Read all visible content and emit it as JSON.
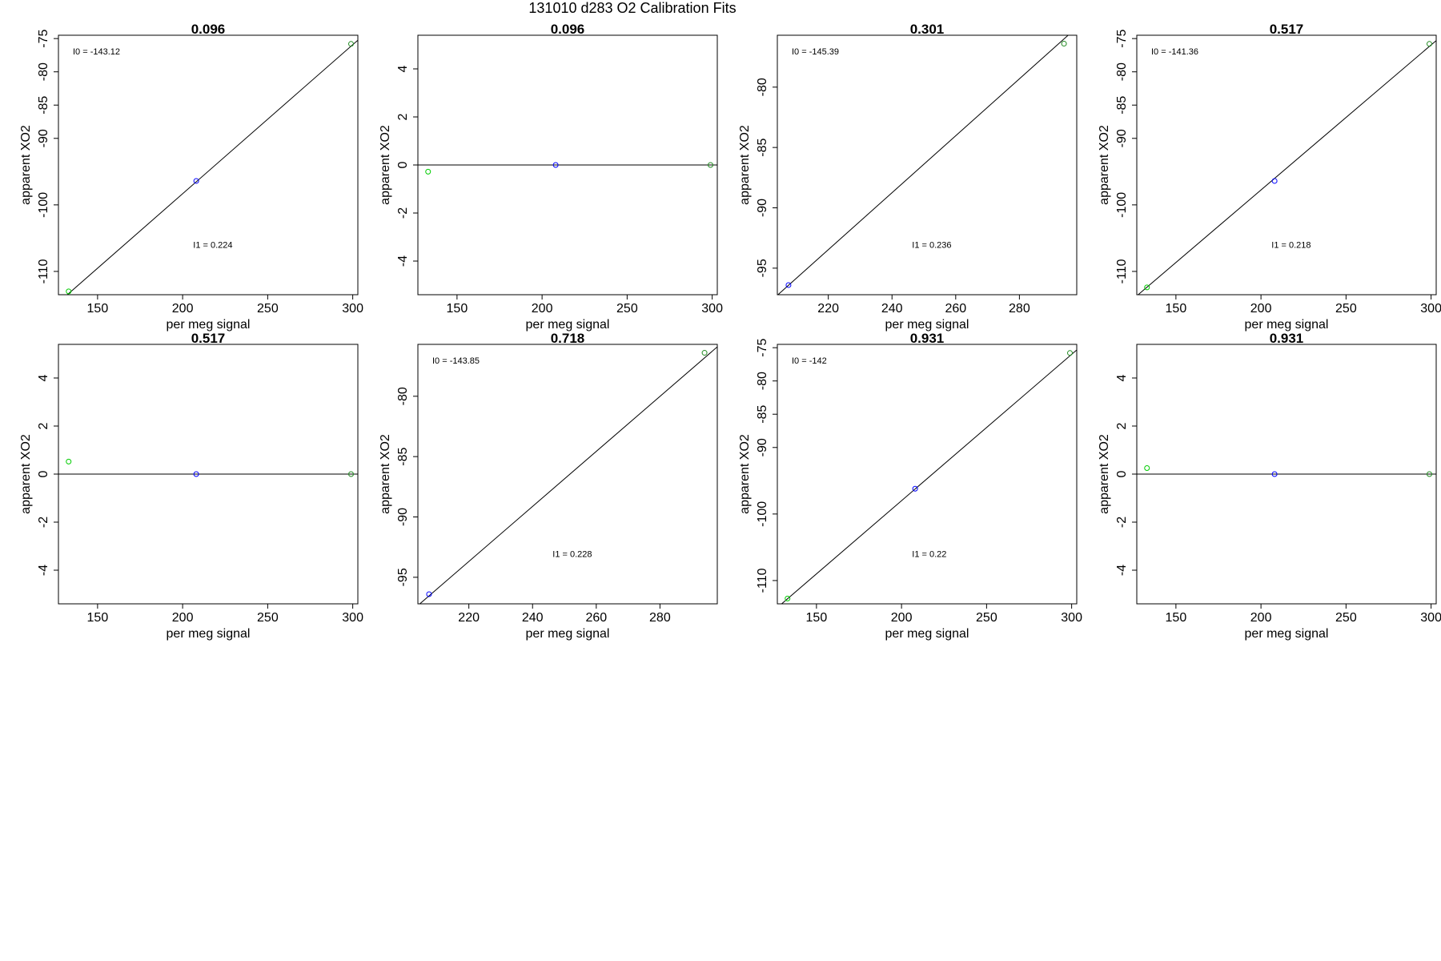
{
  "figure_title": "131010   d283   O2 Calibration Fits",
  "colors": {
    "standard_point": "#00cc00",
    "reference_point": "#0000ff",
    "high_point": "#228b22",
    "fit_line": "#000000",
    "frame": "#000000"
  },
  "chart_data": [
    {
      "type": "scatter",
      "title": "0.096",
      "xlabel": "per meg signal",
      "ylabel": "apparent XO2",
      "xlim": [
        127,
        303
      ],
      "ylim": [
        -113.5,
        -74.5
      ],
      "xticks": [
        150,
        200,
        250,
        300
      ],
      "yticks": [
        -75,
        -80,
        -85,
        -90,
        -100,
        -110
      ],
      "points": [
        {
          "x": 133,
          "y": -113,
          "color": "#00cc00"
        },
        {
          "x": 208,
          "y": -96.4,
          "color": "#0000ff"
        },
        {
          "x": 299,
          "y": -75.8,
          "color": "#228b22"
        }
      ],
      "fit_line": {
        "intercept": -143.12,
        "slope": 0.224
      },
      "annotations": [
        {
          "text": "I0 =  -143.12",
          "pos": "top-left"
        },
        {
          "text": "I1 =  0.224",
          "pos": "center-low"
        }
      ]
    },
    {
      "type": "scatter",
      "title": "0.096",
      "xlabel": "per meg signal",
      "ylabel": "apparent XO2",
      "xlim": [
        127,
        303
      ],
      "ylim": [
        -5.4,
        5.4
      ],
      "xticks": [
        150,
        200,
        250,
        300
      ],
      "yticks": [
        -4,
        -2,
        0,
        2,
        4
      ],
      "points": [
        {
          "x": 133,
          "y": -0.28,
          "color": "#00cc00"
        },
        {
          "x": 208,
          "y": 0,
          "color": "#0000ff"
        },
        {
          "x": 299,
          "y": 0,
          "color": "#228b22"
        }
      ],
      "fit_line": {
        "intercept": 0,
        "slope": 0
      },
      "annotations": []
    },
    {
      "type": "scatter",
      "title": "0.301",
      "xlabel": "per meg signal",
      "ylabel": "apparent XO2",
      "xlim": [
        204,
        298
      ],
      "ylim": [
        -97.2,
        -75.7
      ],
      "xticks": [
        220,
        240,
        260,
        280
      ],
      "yticks": [
        -80,
        -85,
        -90,
        -95
      ],
      "points": [
        {
          "x": 207.5,
          "y": -96.4,
          "color": "#0000ff"
        },
        {
          "x": 294,
          "y": -76.4,
          "color": "#228b22"
        }
      ],
      "fit_line": {
        "intercept": -145.39,
        "slope": 0.236
      },
      "annotations": [
        {
          "text": "I0 =  -145.39",
          "pos": "top-left"
        },
        {
          "text": "I1 =  0.236",
          "pos": "center-low"
        }
      ]
    },
    {
      "type": "scatter",
      "title": "0.517",
      "xlabel": "per meg signal",
      "ylabel": "apparent XO2",
      "xlim": [
        127,
        303
      ],
      "ylim": [
        -113.5,
        -74.5
      ],
      "xticks": [
        150,
        200,
        250,
        300
      ],
      "yticks": [
        -75,
        -80,
        -85,
        -90,
        -100,
        -110
      ],
      "points": [
        {
          "x": 133,
          "y": -112.4,
          "color": "#00cc00"
        },
        {
          "x": 208,
          "y": -96.4,
          "color": "#0000ff"
        },
        {
          "x": 299,
          "y": -75.8,
          "color": "#228b22"
        }
      ],
      "fit_line": {
        "intercept": -141.36,
        "slope": 0.218
      },
      "annotations": [
        {
          "text": "I0 =  -141.36",
          "pos": "top-left"
        },
        {
          "text": "I1 =  0.218",
          "pos": "center-low"
        }
      ]
    },
    {
      "type": "scatter",
      "title": "0.517",
      "xlabel": "per meg signal",
      "ylabel": "apparent XO2",
      "xlim": [
        127,
        303
      ],
      "ylim": [
        -5.4,
        5.4
      ],
      "xticks": [
        150,
        200,
        250,
        300
      ],
      "yticks": [
        -4,
        -2,
        0,
        2,
        4
      ],
      "points": [
        {
          "x": 133,
          "y": 0.52,
          "color": "#00cc00"
        },
        {
          "x": 208,
          "y": 0,
          "color": "#0000ff"
        },
        {
          "x": 299,
          "y": 0,
          "color": "#228b22"
        }
      ],
      "fit_line": {
        "intercept": 0,
        "slope": 0
      },
      "annotations": []
    },
    {
      "type": "scatter",
      "title": "0.718",
      "xlabel": "per meg signal",
      "ylabel": "apparent XO2",
      "xlim": [
        204,
        298
      ],
      "ylim": [
        -97.2,
        -75.7
      ],
      "xticks": [
        220,
        240,
        260,
        280
      ],
      "yticks": [
        -80,
        -85,
        -90,
        -95
      ],
      "points": [
        {
          "x": 207.5,
          "y": -96.4,
          "color": "#0000ff"
        },
        {
          "x": 294,
          "y": -76.4,
          "color": "#228b22"
        }
      ],
      "fit_line": {
        "intercept": -143.85,
        "slope": 0.228
      },
      "annotations": [
        {
          "text": "I0 =  -143.85",
          "pos": "top-left"
        },
        {
          "text": "I1 =  0.228",
          "pos": "center-low"
        }
      ]
    },
    {
      "type": "scatter",
      "title": "0.931",
      "xlabel": "per meg signal",
      "ylabel": "apparent XO2",
      "xlim": [
        127,
        303
      ],
      "ylim": [
        -113.5,
        -74.5
      ],
      "xticks": [
        150,
        200,
        250,
        300
      ],
      "yticks": [
        -75,
        -80,
        -85,
        -90,
        -100,
        -110
      ],
      "points": [
        {
          "x": 133,
          "y": -112.7,
          "color": "#00cc00"
        },
        {
          "x": 208,
          "y": -96.2,
          "color": "#0000ff"
        },
        {
          "x": 299,
          "y": -75.8,
          "color": "#228b22"
        }
      ],
      "fit_line": {
        "intercept": -142,
        "slope": 0.22
      },
      "annotations": [
        {
          "text": "I0 =  -142",
          "pos": "top-left"
        },
        {
          "text": "I1 =  0.22",
          "pos": "center-low"
        }
      ]
    },
    {
      "type": "scatter",
      "title": "0.931",
      "xlabel": "per meg signal",
      "ylabel": "apparent XO2",
      "xlim": [
        127,
        303
      ],
      "ylim": [
        -5.4,
        5.4
      ],
      "xticks": [
        150,
        200,
        250,
        300
      ],
      "yticks": [
        -4,
        -2,
        0,
        2,
        4
      ],
      "points": [
        {
          "x": 133,
          "y": 0.25,
          "color": "#00cc00"
        },
        {
          "x": 208,
          "y": 0,
          "color": "#0000ff"
        },
        {
          "x": 299,
          "y": 0,
          "color": "#228b22"
        }
      ],
      "fit_line": {
        "intercept": 0,
        "slope": 0
      },
      "annotations": []
    }
  ]
}
